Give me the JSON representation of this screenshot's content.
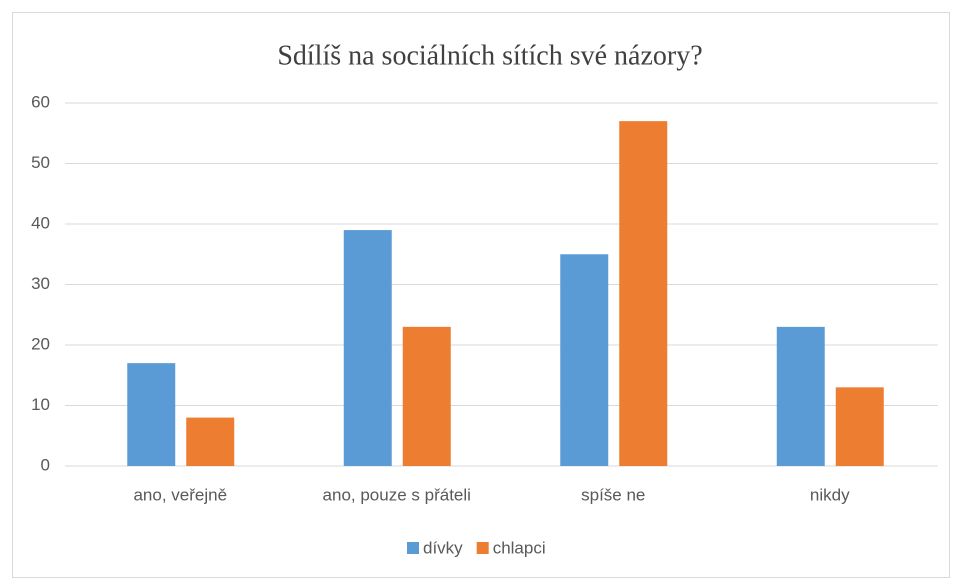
{
  "chart_data": {
    "type": "bar",
    "title": "Sdílíš na sociálních sítích své názory?",
    "categories": [
      "ano, veřejně",
      "ano, pouze s přáteli",
      "spíše ne",
      "nikdy"
    ],
    "series": [
      {
        "name": "dívky",
        "color": "#5b9bd5",
        "values": [
          17,
          39,
          35,
          23
        ]
      },
      {
        "name": "chlapci",
        "color": "#ed7d31",
        "values": [
          8,
          23,
          57,
          13
        ]
      }
    ],
    "ylim": [
      0,
      60
    ],
    "yticks": [
      0,
      10,
      20,
      30,
      40,
      50,
      60
    ],
    "grid": true,
    "legend": "bottom"
  }
}
